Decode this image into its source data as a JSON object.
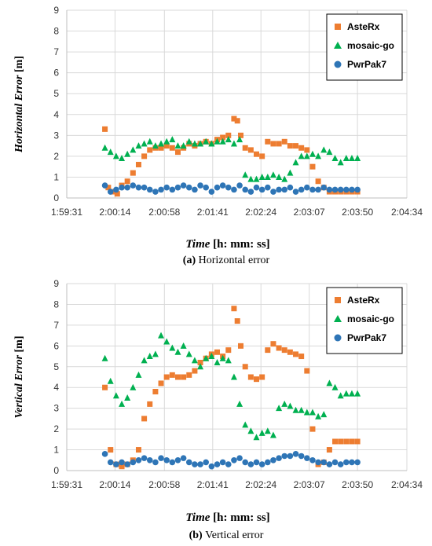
{
  "chart_data": [
    {
      "type": "scatter",
      "ylabel_var": "Horizontal Error",
      "ylabel_unit": "[m]",
      "xlabel_var": "Time",
      "xlabel_unit": "[h: mm: ss]",
      "caption_letter": "(a)",
      "caption_text": "Horizontal error",
      "ylim": [
        0,
        9
      ],
      "yticks": [
        0,
        1,
        2,
        3,
        4,
        5,
        6,
        7,
        8,
        9
      ],
      "xlim": [
        "1:59:31",
        "2:04:34"
      ],
      "xticks": [
        "1:59:31",
        "2:00:14",
        "2:00:58",
        "2:01:41",
        "2:02:24",
        "2:03:07",
        "2:03:50",
        "2:04:34"
      ],
      "legend_position": "top-right",
      "grid": true,
      "series": [
        {
          "name": "AsteRx",
          "marker": "square",
          "color": "#ed7d31",
          "x": [
            "2:00:05",
            "2:00:08",
            "2:00:12",
            "2:00:16",
            "2:00:20",
            "2:00:25",
            "2:00:30",
            "2:00:35",
            "2:00:40",
            "2:00:45",
            "2:00:50",
            "2:00:55",
            "2:01:00",
            "2:01:05",
            "2:01:10",
            "2:01:15",
            "2:01:20",
            "2:01:25",
            "2:01:30",
            "2:01:35",
            "2:01:40",
            "2:01:45",
            "2:01:50",
            "2:01:55",
            "2:02:00",
            "2:02:03",
            "2:02:06",
            "2:02:10",
            "2:02:15",
            "2:02:20",
            "2:02:25",
            "2:02:30",
            "2:02:35",
            "2:02:40",
            "2:02:45",
            "2:02:50",
            "2:02:55",
            "2:03:00",
            "2:03:05",
            "2:03:10",
            "2:03:15",
            "2:03:20",
            "2:03:25",
            "2:03:30",
            "2:03:35",
            "2:03:40",
            "2:03:45",
            "2:03:50"
          ],
          "y": [
            3.3,
            0.5,
            0.3,
            0.2,
            0.6,
            0.8,
            1.2,
            1.6,
            2.0,
            2.3,
            2.4,
            2.4,
            2.5,
            2.4,
            2.2,
            2.4,
            2.6,
            2.5,
            2.6,
            2.7,
            2.6,
            2.8,
            2.9,
            3.0,
            3.8,
            3.7,
            3.0,
            2.4,
            2.3,
            2.1,
            2.0,
            2.7,
            2.6,
            2.6,
            2.7,
            2.5,
            2.5,
            2.4,
            2.3,
            1.5,
            0.8,
            0.5,
            0.3,
            0.3,
            0.3,
            0.3,
            0.3,
            0.3
          ]
        },
        {
          "name": "mosaic-go",
          "marker": "triangle",
          "color": "#00b050",
          "x": [
            "2:00:05",
            "2:00:10",
            "2:00:15",
            "2:00:20",
            "2:00:25",
            "2:00:30",
            "2:00:35",
            "2:00:40",
            "2:00:45",
            "2:00:50",
            "2:00:55",
            "2:01:00",
            "2:01:05",
            "2:01:10",
            "2:01:15",
            "2:01:20",
            "2:01:25",
            "2:01:30",
            "2:01:35",
            "2:01:40",
            "2:01:45",
            "2:01:50",
            "2:01:55",
            "2:02:00",
            "2:02:05",
            "2:02:10",
            "2:02:15",
            "2:02:20",
            "2:02:25",
            "2:02:30",
            "2:02:35",
            "2:02:40",
            "2:02:45",
            "2:02:50",
            "2:02:55",
            "2:03:00",
            "2:03:05",
            "2:03:10",
            "2:03:15",
            "2:03:20",
            "2:03:25",
            "2:03:30",
            "2:03:35",
            "2:03:40",
            "2:03:45",
            "2:03:50"
          ],
          "y": [
            2.4,
            2.2,
            2.0,
            1.9,
            2.1,
            2.3,
            2.5,
            2.6,
            2.7,
            2.5,
            2.6,
            2.7,
            2.8,
            2.5,
            2.5,
            2.7,
            2.6,
            2.6,
            2.7,
            2.6,
            2.7,
            2.7,
            2.8,
            2.6,
            2.8,
            1.1,
            0.9,
            0.9,
            1.0,
            1.0,
            1.1,
            1.0,
            0.9,
            1.2,
            1.7,
            2.0,
            2.0,
            2.1,
            2.0,
            2.3,
            2.2,
            1.9,
            1.7,
            1.9,
            1.9,
            1.9
          ]
        },
        {
          "name": "PwrPak7",
          "marker": "circle",
          "color": "#2e75b6",
          "x": [
            "2:00:05",
            "2:00:10",
            "2:00:15",
            "2:00:20",
            "2:00:25",
            "2:00:30",
            "2:00:35",
            "2:00:40",
            "2:00:45",
            "2:00:50",
            "2:00:55",
            "2:01:00",
            "2:01:05",
            "2:01:10",
            "2:01:15",
            "2:01:20",
            "2:01:25",
            "2:01:30",
            "2:01:35",
            "2:01:40",
            "2:01:45",
            "2:01:50",
            "2:01:55",
            "2:02:00",
            "2:02:05",
            "2:02:10",
            "2:02:15",
            "2:02:20",
            "2:02:25",
            "2:02:30",
            "2:02:35",
            "2:02:40",
            "2:02:45",
            "2:02:50",
            "2:02:55",
            "2:03:00",
            "2:03:05",
            "2:03:10",
            "2:03:15",
            "2:03:20",
            "2:03:25",
            "2:03:30",
            "2:03:35",
            "2:03:40",
            "2:03:45",
            "2:03:50"
          ],
          "y": [
            0.6,
            0.3,
            0.4,
            0.5,
            0.5,
            0.6,
            0.5,
            0.5,
            0.4,
            0.3,
            0.4,
            0.5,
            0.4,
            0.5,
            0.6,
            0.5,
            0.4,
            0.6,
            0.5,
            0.3,
            0.5,
            0.6,
            0.5,
            0.4,
            0.6,
            0.4,
            0.3,
            0.5,
            0.4,
            0.5,
            0.3,
            0.4,
            0.4,
            0.5,
            0.3,
            0.4,
            0.5,
            0.4,
            0.4,
            0.5,
            0.4,
            0.4,
            0.4,
            0.4,
            0.4,
            0.4
          ]
        }
      ]
    },
    {
      "type": "scatter",
      "ylabel_var": "Vertical Error",
      "ylabel_unit": "[m]",
      "xlabel_var": "Time",
      "xlabel_unit": "[h: mm: ss]",
      "caption_letter": "(b)",
      "caption_text": "Vertical error",
      "ylim": [
        0,
        9
      ],
      "yticks": [
        0,
        1,
        2,
        3,
        4,
        5,
        6,
        7,
        8,
        9
      ],
      "xlim": [
        "1:59:31",
        "2:04:34"
      ],
      "xticks": [
        "1:59:31",
        "2:00:14",
        "2:00:58",
        "2:01:41",
        "2:02:24",
        "2:03:07",
        "2:03:50",
        "2:04:34"
      ],
      "legend_position": "top-right",
      "grid": true,
      "series": [
        {
          "name": "AsteRx",
          "marker": "square",
          "color": "#ed7d31",
          "x": [
            "2:00:05",
            "2:00:10",
            "2:00:15",
            "2:00:20",
            "2:00:25",
            "2:00:30",
            "2:00:35",
            "2:00:40",
            "2:00:45",
            "2:00:50",
            "2:00:55",
            "2:01:00",
            "2:01:05",
            "2:01:10",
            "2:01:15",
            "2:01:20",
            "2:01:25",
            "2:01:30",
            "2:01:35",
            "2:01:40",
            "2:01:45",
            "2:01:50",
            "2:01:55",
            "2:02:00",
            "2:02:03",
            "2:02:06",
            "2:02:10",
            "2:02:15",
            "2:02:20",
            "2:02:25",
            "2:02:30",
            "2:02:35",
            "2:02:40",
            "2:02:45",
            "2:02:50",
            "2:02:55",
            "2:03:00",
            "2:03:05",
            "2:03:10",
            "2:03:15",
            "2:03:20",
            "2:03:25",
            "2:03:30",
            "2:03:35",
            "2:03:40",
            "2:03:45",
            "2:03:50"
          ],
          "y": [
            4.0,
            1.0,
            0.3,
            0.2,
            0.3,
            0.5,
            1.0,
            2.5,
            3.2,
            3.8,
            4.2,
            4.5,
            4.6,
            4.5,
            4.5,
            4.6,
            4.8,
            5.2,
            5.4,
            5.6,
            5.7,
            5.5,
            5.8,
            7.8,
            7.2,
            6.0,
            5.0,
            4.5,
            4.4,
            4.5,
            5.8,
            6.1,
            5.9,
            5.8,
            5.7,
            5.6,
            5.5,
            4.8,
            2.0,
            0.3,
            0.4,
            1.0,
            1.4,
            1.4,
            1.4,
            1.4,
            1.4
          ]
        },
        {
          "name": "mosaic-go",
          "marker": "triangle",
          "color": "#00b050",
          "x": [
            "2:00:05",
            "2:00:10",
            "2:00:15",
            "2:00:20",
            "2:00:25",
            "2:00:30",
            "2:00:35",
            "2:00:40",
            "2:00:45",
            "2:00:50",
            "2:00:55",
            "2:01:00",
            "2:01:05",
            "2:01:10",
            "2:01:15",
            "2:01:20",
            "2:01:25",
            "2:01:30",
            "2:01:35",
            "2:01:40",
            "2:01:45",
            "2:01:50",
            "2:01:55",
            "2:02:00",
            "2:02:05",
            "2:02:10",
            "2:02:15",
            "2:02:20",
            "2:02:25",
            "2:02:30",
            "2:02:35",
            "2:02:40",
            "2:02:45",
            "2:02:50",
            "2:02:55",
            "2:03:00",
            "2:03:05",
            "2:03:10",
            "2:03:15",
            "2:03:20",
            "2:03:25",
            "2:03:30",
            "2:03:35",
            "2:03:40",
            "2:03:45",
            "2:03:50"
          ],
          "y": [
            5.4,
            4.3,
            3.6,
            3.2,
            3.5,
            4.0,
            4.6,
            5.3,
            5.5,
            5.6,
            6.5,
            6.2,
            5.9,
            5.7,
            6.0,
            5.6,
            5.3,
            5.0,
            5.4,
            5.5,
            5.2,
            5.4,
            5.3,
            4.5,
            3.2,
            2.2,
            1.9,
            1.6,
            1.8,
            1.9,
            1.7,
            3.0,
            3.2,
            3.1,
            2.9,
            2.9,
            2.8,
            2.8,
            2.6,
            2.7,
            4.2,
            4.0,
            3.6,
            3.7,
            3.7,
            3.7
          ]
        },
        {
          "name": "PwrPak7",
          "marker": "circle",
          "color": "#2e75b6",
          "x": [
            "2:00:05",
            "2:00:10",
            "2:00:15",
            "2:00:20",
            "2:00:25",
            "2:00:30",
            "2:00:35",
            "2:00:40",
            "2:00:45",
            "2:00:50",
            "2:00:55",
            "2:01:00",
            "2:01:05",
            "2:01:10",
            "2:01:15",
            "2:01:20",
            "2:01:25",
            "2:01:30",
            "2:01:35",
            "2:01:40",
            "2:01:45",
            "2:01:50",
            "2:01:55",
            "2:02:00",
            "2:02:05",
            "2:02:10",
            "2:02:15",
            "2:02:20",
            "2:02:25",
            "2:02:30",
            "2:02:35",
            "2:02:40",
            "2:02:45",
            "2:02:50",
            "2:02:55",
            "2:03:00",
            "2:03:05",
            "2:03:10",
            "2:03:15",
            "2:03:20",
            "2:03:25",
            "2:03:30",
            "2:03:35",
            "2:03:40",
            "2:03:45",
            "2:03:50"
          ],
          "y": [
            0.8,
            0.4,
            0.3,
            0.4,
            0.3,
            0.4,
            0.5,
            0.6,
            0.5,
            0.4,
            0.6,
            0.5,
            0.4,
            0.5,
            0.6,
            0.4,
            0.3,
            0.3,
            0.4,
            0.2,
            0.3,
            0.4,
            0.3,
            0.5,
            0.6,
            0.4,
            0.3,
            0.4,
            0.3,
            0.4,
            0.5,
            0.6,
            0.7,
            0.7,
            0.8,
            0.7,
            0.6,
            0.5,
            0.4,
            0.4,
            0.3,
            0.4,
            0.3,
            0.4,
            0.4,
            0.4
          ]
        }
      ]
    }
  ]
}
